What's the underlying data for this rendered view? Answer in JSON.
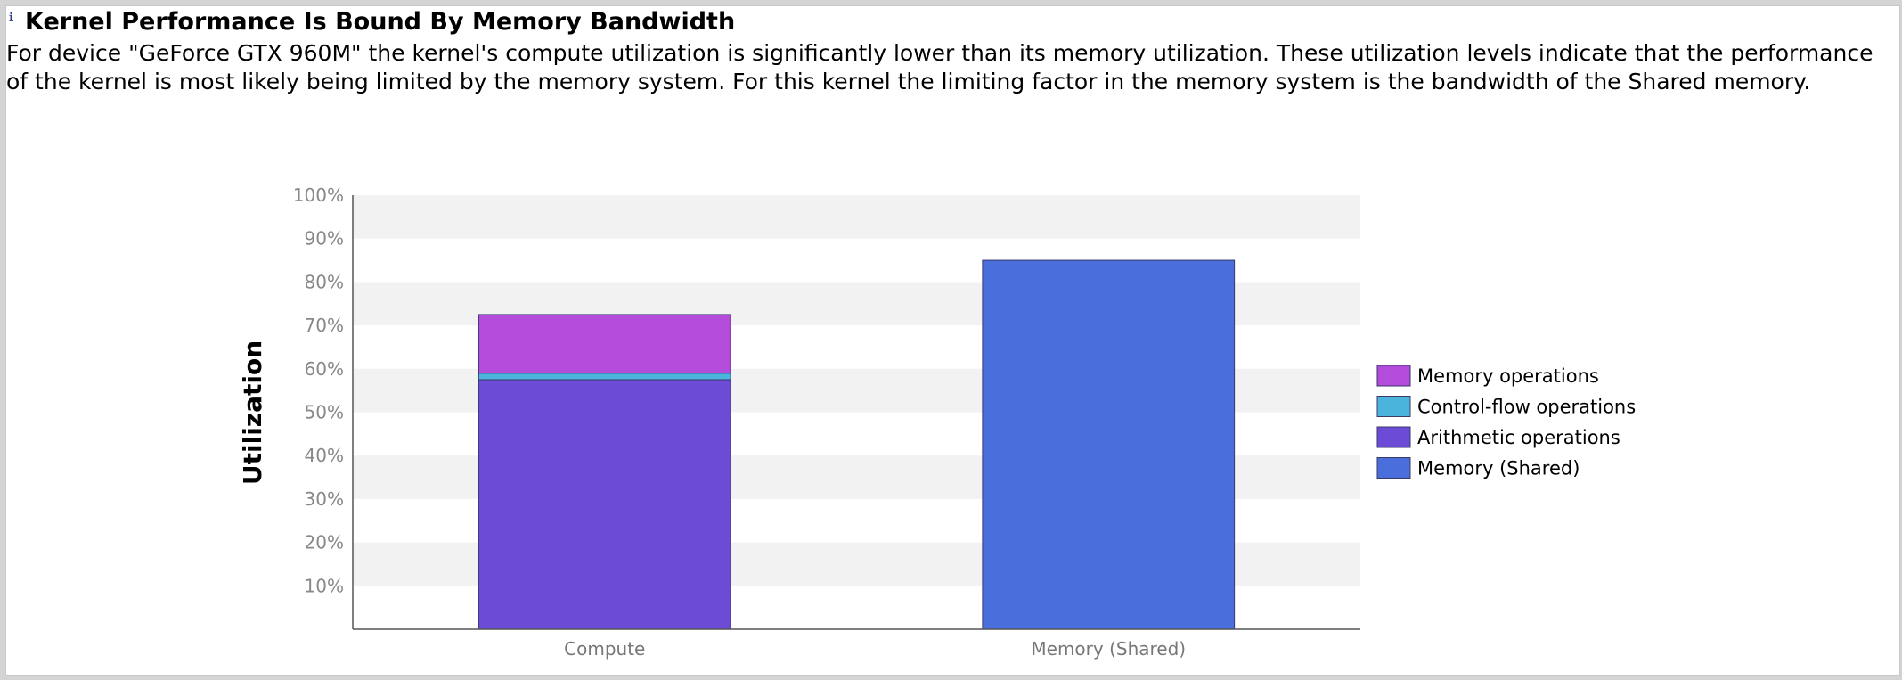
{
  "heading": "Kernel Performance Is Bound By Memory Bandwidth",
  "description": "For device \"GeForce GTX 960M\" the kernel's compute utilization is significantly lower than its memory utilization. These utilization levels indicate that the performance of the kernel is most likely being limited by the memory system. For this kernel the limiting factor in the memory system is the bandwidth of the Shared memory.",
  "icons": {
    "info": "info-icon"
  },
  "chart_data": {
    "type": "bar",
    "stacked": true,
    "ylabel": "Utilization",
    "ylim": [
      0,
      100
    ],
    "yticks": [
      "10%",
      "20%",
      "30%",
      "40%",
      "50%",
      "60%",
      "70%",
      "80%",
      "90%",
      "100%"
    ],
    "grid": "alternating horizontal bands",
    "legend_position": "right",
    "categories": [
      "Compute",
      "Memory (Shared)"
    ],
    "series": [
      {
        "name": "Arithmetic operations",
        "color": "#6c4bd7",
        "values": [
          57.5,
          0
        ]
      },
      {
        "name": "Control-flow operations",
        "color": "#4ab4dc",
        "values": [
          1.5,
          0
        ]
      },
      {
        "name": "Memory operations",
        "color": "#b34bdb",
        "values": [
          13.5,
          0
        ]
      },
      {
        "name": "Memory (Shared)",
        "color": "#4a6edb",
        "values": [
          0,
          85
        ]
      }
    ],
    "legend_order": [
      "Memory operations",
      "Control-flow operations",
      "Arithmetic operations",
      "Memory (Shared)"
    ]
  }
}
